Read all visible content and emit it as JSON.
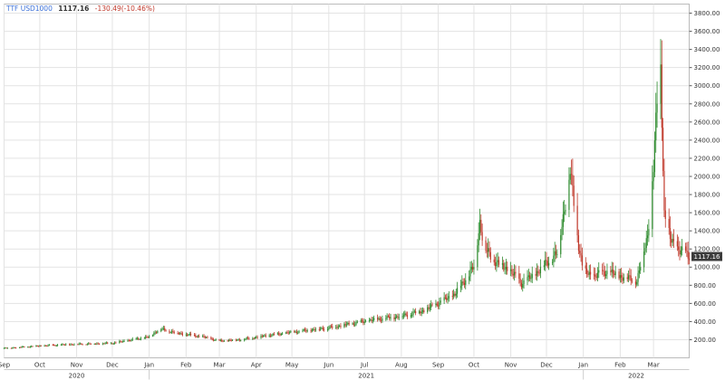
{
  "header": {
    "symbol": "TTF USD1000",
    "last": "1117.16",
    "change": "-130.49(-10.46%)"
  },
  "price_tag": "1117.16",
  "colors": {
    "up": "#2e8b2e",
    "down": "#c0392b",
    "symbol": "#3a6fd8",
    "tag_bg": "#3c3c3c",
    "grid": "#e3e3e3"
  },
  "chart_data": {
    "type": "candlestick",
    "title": "TTF USD1000",
    "ylim": [
      0,
      3900
    ],
    "y_ticks": [
      "200.00",
      "400.00",
      "600.00",
      "800.00",
      "1000.00",
      "1200.00",
      "1400.00",
      "1600.00",
      "1800.00",
      "2000.00",
      "2200.00",
      "2400.00",
      "2600.00",
      "2800.00",
      "3000.00",
      "3200.00",
      "3400.00",
      "3600.00",
      "3800.00"
    ],
    "month_labels": [
      "Sep",
      "Oct",
      "Nov",
      "Dec",
      "Jan",
      "Feb",
      "Mar",
      "Apr",
      "May",
      "Jun",
      "Jul",
      "Aug",
      "Sep",
      "Oct",
      "Nov",
      "Dec",
      "Jan",
      "Feb",
      "Mar"
    ],
    "year_labels": [
      "2020",
      "2021",
      "2022"
    ],
    "x_range": [
      "2020-09-01",
      "2022-03-31"
    ],
    "series": [
      {
        "points": [
          [
            "2020-09-01",
            105
          ],
          [
            "2020-10-01",
            130
          ],
          [
            "2020-11-01",
            150
          ],
          [
            "2020-12-01",
            160
          ],
          [
            "2021-01-01",
            230
          ],
          [
            "2021-01-10",
            320
          ],
          [
            "2021-01-25",
            270
          ],
          [
            "2021-02-15",
            230
          ],
          [
            "2021-03-01",
            185
          ],
          [
            "2021-03-20",
            200
          ],
          [
            "2021-04-05",
            235
          ],
          [
            "2021-05-01",
            280
          ],
          [
            "2021-06-01",
            330
          ],
          [
            "2021-07-01",
            400
          ],
          [
            "2021-07-15",
            430
          ],
          [
            "2021-08-01",
            460
          ],
          [
            "2021-08-20",
            520
          ],
          [
            "2021-09-01",
            600
          ],
          [
            "2021-09-15",
            700
          ],
          [
            "2021-10-01",
            1000
          ],
          [
            "2021-10-06",
            1500
          ],
          [
            "2021-10-10",
            1200
          ],
          [
            "2021-10-20",
            1050
          ],
          [
            "2021-11-01",
            950
          ],
          [
            "2021-11-10",
            820
          ],
          [
            "2021-11-20",
            900
          ],
          [
            "2021-12-01",
            1050
          ],
          [
            "2021-12-10",
            1150
          ],
          [
            "2021-12-21",
            2050
          ],
          [
            "2021-12-28",
            1250
          ],
          [
            "2022-01-01",
            950
          ],
          [
            "2022-01-10",
            900
          ],
          [
            "2022-01-20",
            950
          ],
          [
            "2022-02-01",
            900
          ],
          [
            "2022-02-15",
            850
          ],
          [
            "2022-02-24",
            1350
          ],
          [
            "2022-03-01",
            2100
          ],
          [
            "2022-03-04",
            2800
          ],
          [
            "2022-03-07",
            3200
          ],
          [
            "2022-03-10",
            1600
          ],
          [
            "2022-03-15",
            1300
          ],
          [
            "2022-03-22",
            1200
          ],
          [
            "2022-03-31",
            1117
          ]
        ]
      }
    ]
  }
}
